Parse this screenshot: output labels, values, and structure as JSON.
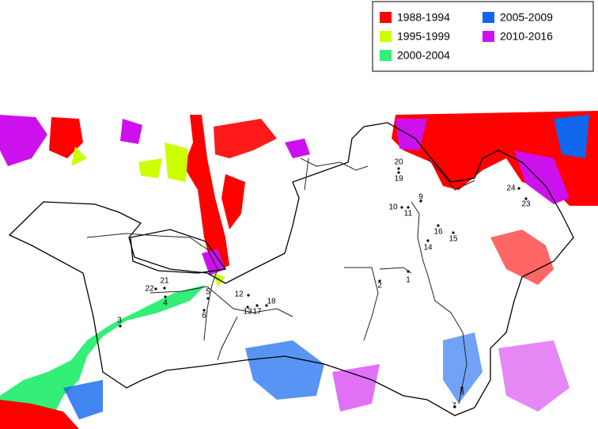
{
  "legend": {
    "items": [
      {
        "label": "1988-1994",
        "color": "#ff0000"
      },
      {
        "label": "1995-1999",
        "color": "#ccff00"
      },
      {
        "label": "2000-2004",
        "color": "#33ee77"
      },
      {
        "label": "2005-2009",
        "color": "#1166ee"
      },
      {
        "label": "2010-2016",
        "color": "#cc11ee"
      }
    ]
  },
  "points": [
    {
      "label": "1"
    },
    {
      "label": "2"
    },
    {
      "label": "3"
    },
    {
      "label": "4"
    },
    {
      "label": "5"
    },
    {
      "label": "6"
    },
    {
      "label": "7"
    },
    {
      "label": "8"
    },
    {
      "label": "9"
    },
    {
      "label": "10"
    },
    {
      "label": "11"
    },
    {
      "label": "12"
    },
    {
      "label": "13"
    },
    {
      "label": "14"
    },
    {
      "label": "15"
    },
    {
      "label": "16"
    },
    {
      "label": "17"
    },
    {
      "label": "18"
    },
    {
      "label": "19"
    },
    {
      "label": "20"
    },
    {
      "label": "21"
    },
    {
      "label": "22"
    },
    {
      "label": "23"
    },
    {
      "label": "24"
    }
  ]
}
